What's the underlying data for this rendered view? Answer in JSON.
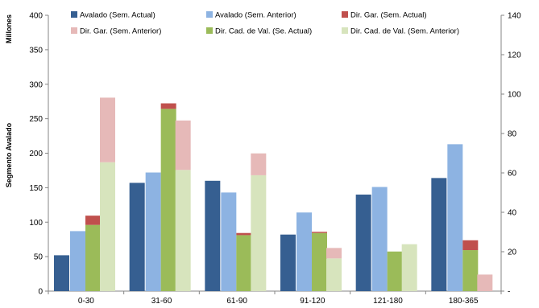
{
  "chart_data": {
    "type": "bar",
    "categories": [
      "0-30",
      "31-60",
      "61-90",
      "91-120",
      "121-180",
      "180-365"
    ],
    "left_axis": {
      "units_label": "Millones",
      "title": "Segmento Avalado",
      "ylim": [
        0,
        400
      ],
      "ticks": [
        "0",
        "50",
        "100",
        "150",
        "200",
        "250",
        "300",
        "350",
        "400"
      ]
    },
    "right_axis": {
      "ylim": [
        0,
        140
      ],
      "ticks": [
        "-",
        "20",
        "40",
        "60",
        "80",
        "100",
        "120",
        "140"
      ]
    },
    "grid": false,
    "legend_position": "top",
    "series": [
      {
        "name": "Avalado (Sem. Actual)",
        "color": "#365F91",
        "axis": "left",
        "group": "avalado_actual",
        "values": [
          52,
          157,
          160,
          82,
          140,
          164
        ]
      },
      {
        "name": "Avalado (Sem. Anterior)",
        "color": "#8DB3E2",
        "axis": "left",
        "group": "avalado_anterior",
        "values": [
          87,
          172,
          143,
          114,
          151,
          213
        ]
      },
      {
        "name": "Dir. Gar. (Sem. Actual)",
        "color": "#C0504D",
        "axis": "right",
        "group": "actual_stack",
        "values": [
          4.7,
          2.8,
          1.1,
          0.6,
          0,
          5.0
        ]
      },
      {
        "name": "Dir. Gar. (Sem. Anterior)",
        "color": "#E6B9B8",
        "axis": "right",
        "group": "anterior_stack",
        "values": [
          32.8,
          25.1,
          11.1,
          5.3,
          0,
          8.4
        ]
      },
      {
        "name": "Dir. Cad. de Val. (Se. Actual)",
        "color": "#9BBB59",
        "axis": "right",
        "group": "actual_stack",
        "values": [
          33.6,
          92.5,
          28.4,
          29.5,
          20.1,
          20.8
        ]
      },
      {
        "name": "Dir. Cad. de Val. (Sem. Anterior)",
        "color": "#D7E4BD",
        "axis": "right",
        "group": "anterior_stack",
        "values": [
          65.4,
          61.5,
          58.8,
          16.6,
          23.8,
          0
        ]
      }
    ]
  }
}
